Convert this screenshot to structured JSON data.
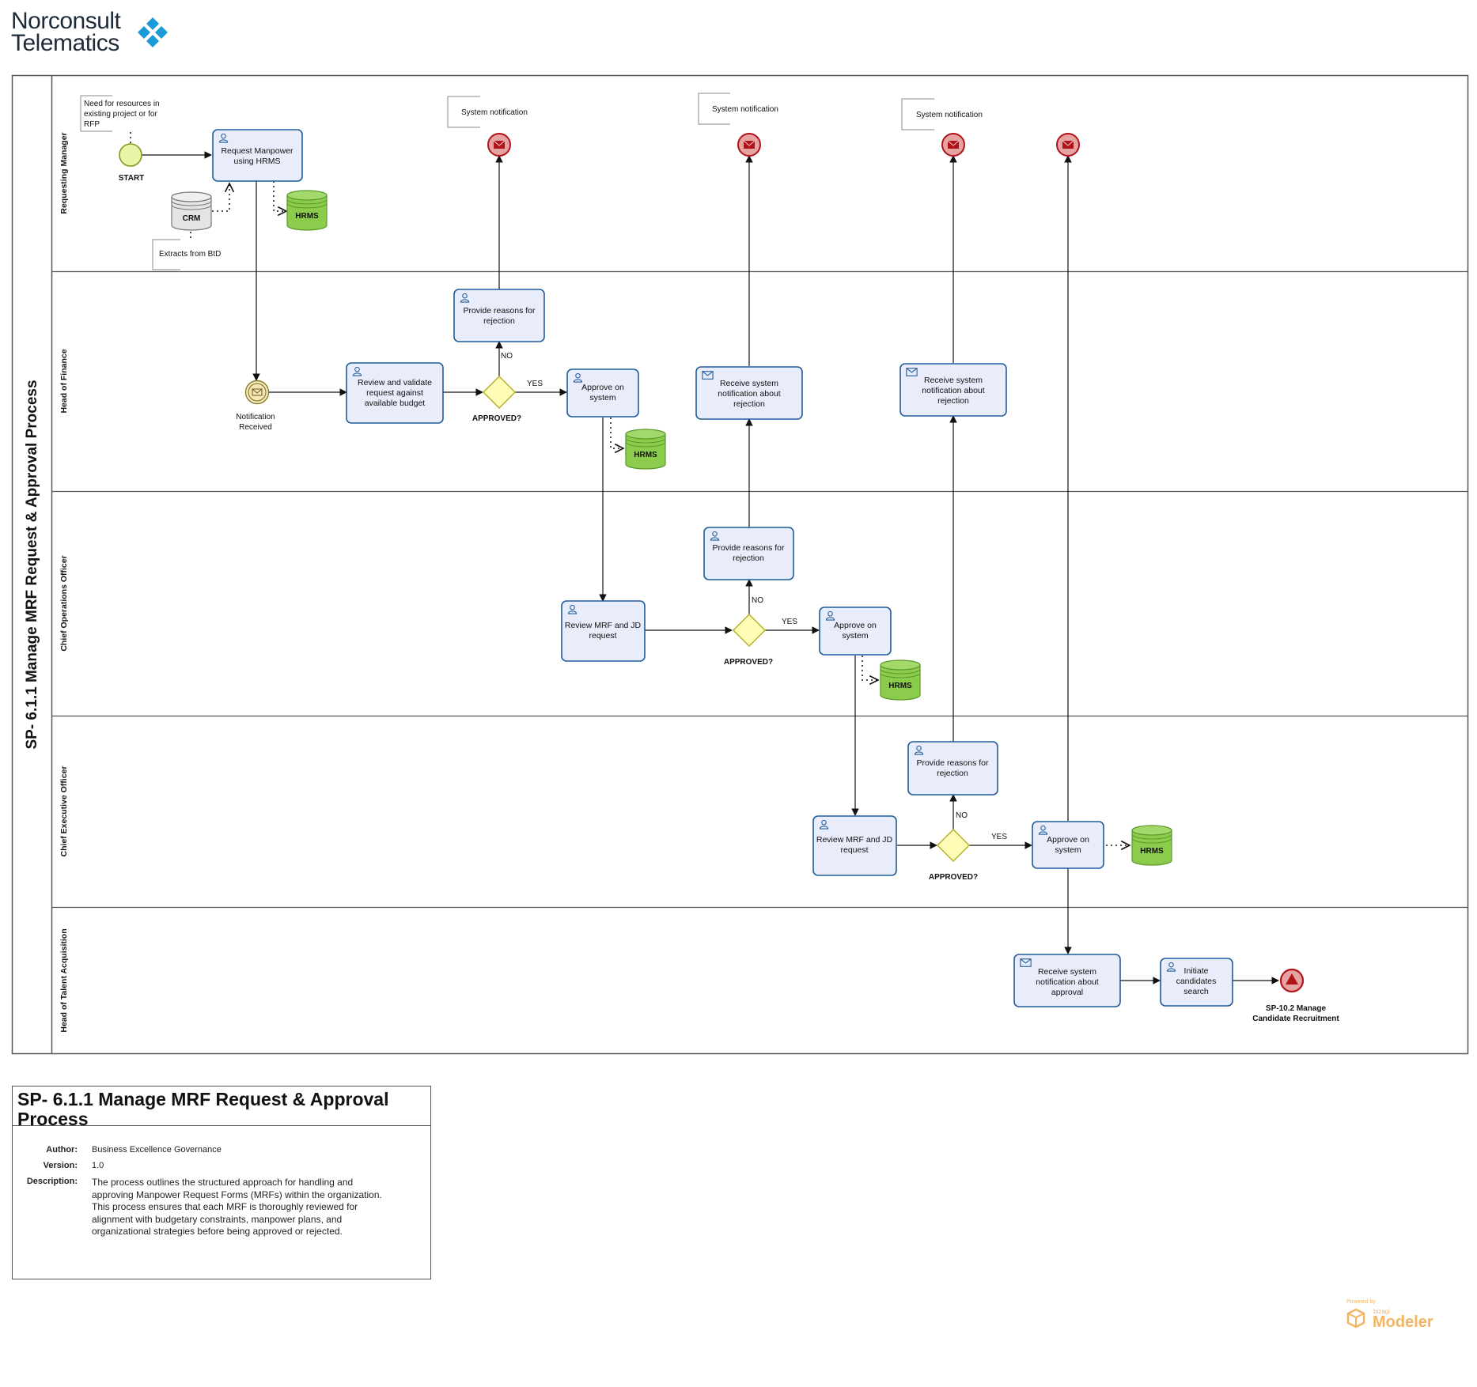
{
  "logo": {
    "line1": "Norconsult",
    "line2": "Telematics",
    "brand_color": "#1a9ad6"
  },
  "pool": {
    "title": "SP- 6.1.1 Manage MRF Request & Approval Process"
  },
  "lanes": [
    "Requesting Manager",
    "Head of Finance",
    "Chief Operations Officer",
    "Chief Executive Officer",
    "Head of Talent Acquisition"
  ],
  "events": {
    "start": "START",
    "notification": [
      "Notification",
      "Received"
    ],
    "end": [
      "SP-10.2 Manage",
      "Candidate Recruitment"
    ]
  },
  "tasks": {
    "request_manpower": [
      "Request Manpower",
      "using HRMS"
    ],
    "review_validate": [
      "Review and validate",
      "request against",
      "available budget"
    ],
    "reasons_fin": [
      "Provide reasons for",
      "rejection"
    ],
    "approve_fin": [
      "Approve on",
      "system"
    ],
    "receive_fin_1": [
      "Receive system",
      "notification about",
      "rejection"
    ],
    "receive_fin_2": [
      "Receive system",
      "notification about",
      "rejection"
    ],
    "review_coo": [
      "Review MRF and JD",
      "request"
    ],
    "reasons_coo": [
      "Provide reasons for",
      "rejection"
    ],
    "approve_coo": [
      "Approve on",
      "system"
    ],
    "review_ceo": [
      "Review MRF and JD",
      "request"
    ],
    "reasons_ceo": [
      "Provide reasons for",
      "rejection"
    ],
    "approve_ceo": [
      "Approve on",
      "system"
    ],
    "receive_ta": [
      "Receive system",
      "notification about",
      "approval"
    ],
    "initiate": [
      "Initiate",
      "candidates",
      "search"
    ]
  },
  "gateway_label": "APPROVED?",
  "flow_labels": {
    "yes": "YES",
    "no": "NO"
  },
  "annotations": {
    "need": [
      "Need for resources in",
      "existing project or for",
      "RFP"
    ],
    "extracts": "Extracts from BtD",
    "system_notification": "System notification"
  },
  "datastores": {
    "crm": "CRM",
    "hrms": "HRMS"
  },
  "info": {
    "title_line1": "SP- 6.1.1 Manage MRF Request & Approval",
    "title_line2": "Process",
    "author_label": "Author:",
    "author": "Business Excellence Governance",
    "version_label": "Version:",
    "version": "1.0",
    "description_label": "Description:",
    "description": [
      "The process outlines the structured approach for handling and",
      "approving Manpower Request Forms (MRFs) within the organization.",
      "This process ensures that each MRF is thoroughly reviewed for",
      "alignment with budgetary constraints, manpower plans, and",
      "organizational strategies before being approved or rejected."
    ]
  },
  "powered": {
    "small": "Powered by",
    "brand": "bizagi",
    "product": "Modeler"
  },
  "colors": {
    "task_fill": "#e9ecfa",
    "task_stroke": "#1f5c99",
    "gateway_fill": "#fdfdb8",
    "gateway_stroke": "#b8b02a",
    "start_fill": "#e8f5a8",
    "start_stroke": "#7a9a1a",
    "end_fill": "#e7a2a2",
    "end_stroke": "#b0141b",
    "datastore_fill": "#8ccc4c",
    "datastore_stroke": "#5a9a2a",
    "crm_fill": "#e4e4e4",
    "notif_fill": "#f3e7b6",
    "notif_stroke": "#8c7a23",
    "powered_color": "#f3b463"
  }
}
